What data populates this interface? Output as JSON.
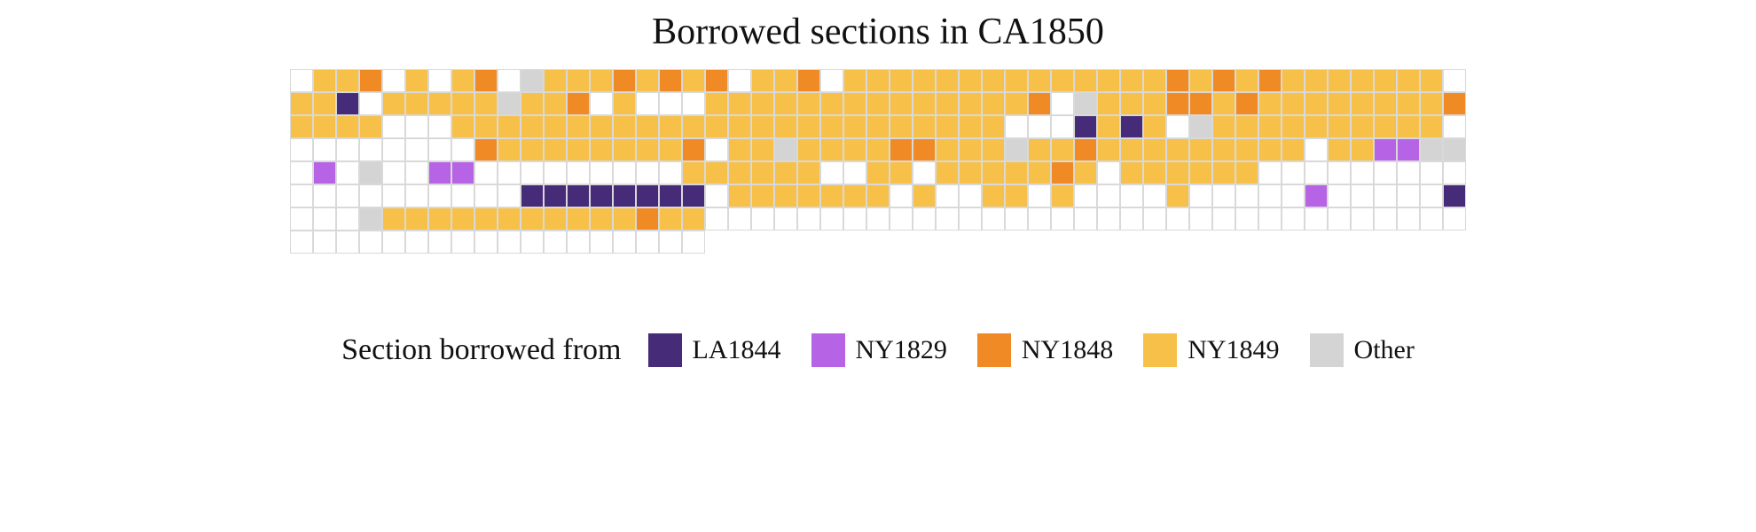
{
  "title": "Borrowed sections in CA1850",
  "chart": {
    "type": "heatmap",
    "cols": 51,
    "rows_count": 8,
    "last_row_cols": 18,
    "cell_size": 26,
    "cell_border": "#d9d9d9",
    "cell_border_width": 1,
    "background_color": "#ffffff",
    "codes": {
      "_": {
        "color": "#ffffff",
        "label": "Blank"
      },
      "L": {
        "color": "#462b79",
        "label": "LA1844"
      },
      "N": {
        "color": "#b663e6",
        "label": "NY1829"
      },
      "O": {
        "color": "#f08a24",
        "label": "NY1848"
      },
      "Y": {
        "color": "#f6c049",
        "label": "NY1849"
      },
      "G": {
        "color": "#d4d4d4",
        "label": "Other"
      }
    },
    "rows": [
      "_YYO_Y_YO_GYYYOYOYO_YYO_YYYYYYYYYYYYYYOYOYOYYYYYYY_",
      "YYL_YYYYYGYYO_Y___YYYYYYYYYYYYYYO_GYYYOOYOYYYYYYYYO",
      "YYYY___YYYYYYYYYYYYYYYYYYYYYYYY___LYLY_GYYYYYYYYYY_",
      "________OYYYYYYYYO_YYGYYYYOOYYYGYYOYYYYYYYYY_YYNNGG",
      "_N_G__NN_________YYYYYY__YY_YYYYYOY_YYYYYY_________",
      "__________LLLLLLLL_YYYYYYY_Y__YY_Y____Y_____N_____L",
      "___GYYYYYYYYYYYOYY_________________________________",
      "___________________________________________________"
    ]
  },
  "legend": {
    "title": "Section borrowed from",
    "swatch_size": 38,
    "items": [
      {
        "code": "L",
        "label": "LA1844"
      },
      {
        "code": "N",
        "label": "NY1829"
      },
      {
        "code": "O",
        "label": "NY1848"
      },
      {
        "code": "Y",
        "label": "NY1849"
      },
      {
        "code": "G",
        "label": "Other"
      }
    ]
  }
}
